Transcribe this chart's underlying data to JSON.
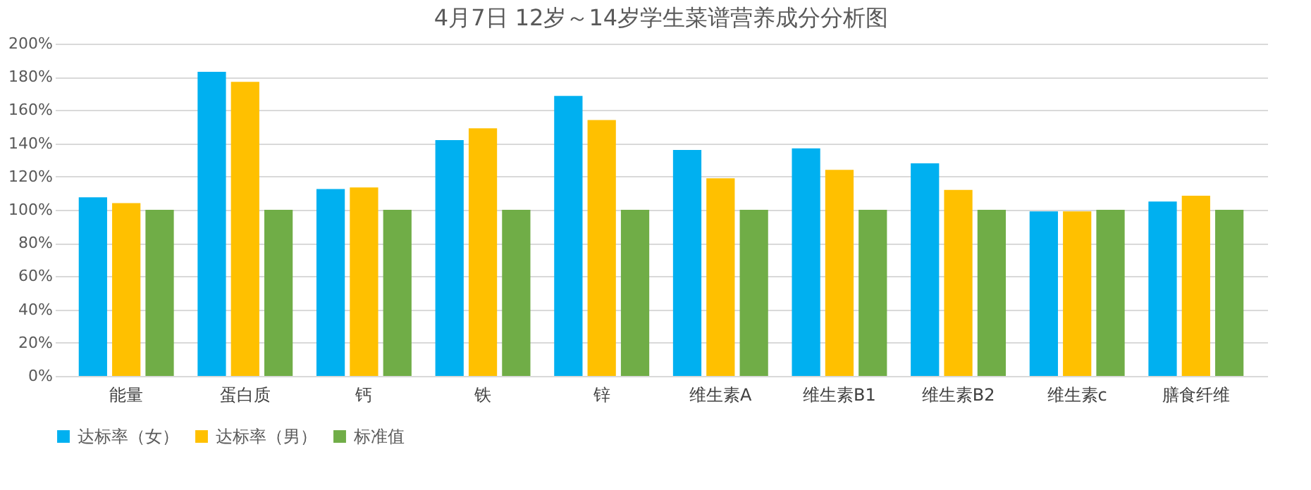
{
  "chart_data": {
    "type": "bar",
    "title": "4月7日 12岁～14岁学生菜谱营养成分分析图",
    "categories": [
      "能量",
      "蛋白质",
      "钙",
      "铁",
      "锌",
      "维生素A",
      "维生素B1",
      "维生素B2",
      "维生素c",
      "膳食纤维"
    ],
    "series": [
      {
        "name": "达标率（女）",
        "color": "#00b0f0",
        "values": [
          107.5,
          183,
          112.5,
          142,
          168.5,
          136,
          137,
          128,
          99,
          105
        ]
      },
      {
        "name": "达标率（男）",
        "color": "#ffc000",
        "values": [
          104,
          177,
          113.5,
          149,
          154,
          119,
          124,
          112,
          99,
          108.5
        ]
      },
      {
        "name": "标准值",
        "color": "#70ad47",
        "values": [
          100,
          100,
          100,
          100,
          100,
          100,
          100,
          100,
          100,
          100
        ]
      }
    ],
    "ylim": [
      0,
      200
    ],
    "yticks": [
      {
        "value": 0,
        "label": "0%"
      },
      {
        "value": 20,
        "label": "20%"
      },
      {
        "value": 40,
        "label": "40%"
      },
      {
        "value": 60,
        "label": "60%"
      },
      {
        "value": 80,
        "label": "80%"
      },
      {
        "value": 100,
        "label": "100%"
      },
      {
        "value": 120,
        "label": "120%"
      },
      {
        "value": 140,
        "label": "140%"
      },
      {
        "value": 160,
        "label": "160%"
      },
      {
        "value": 180,
        "label": "180%"
      },
      {
        "value": 200,
        "label": "200%"
      }
    ],
    "grid": "y",
    "legend": "bottom"
  }
}
